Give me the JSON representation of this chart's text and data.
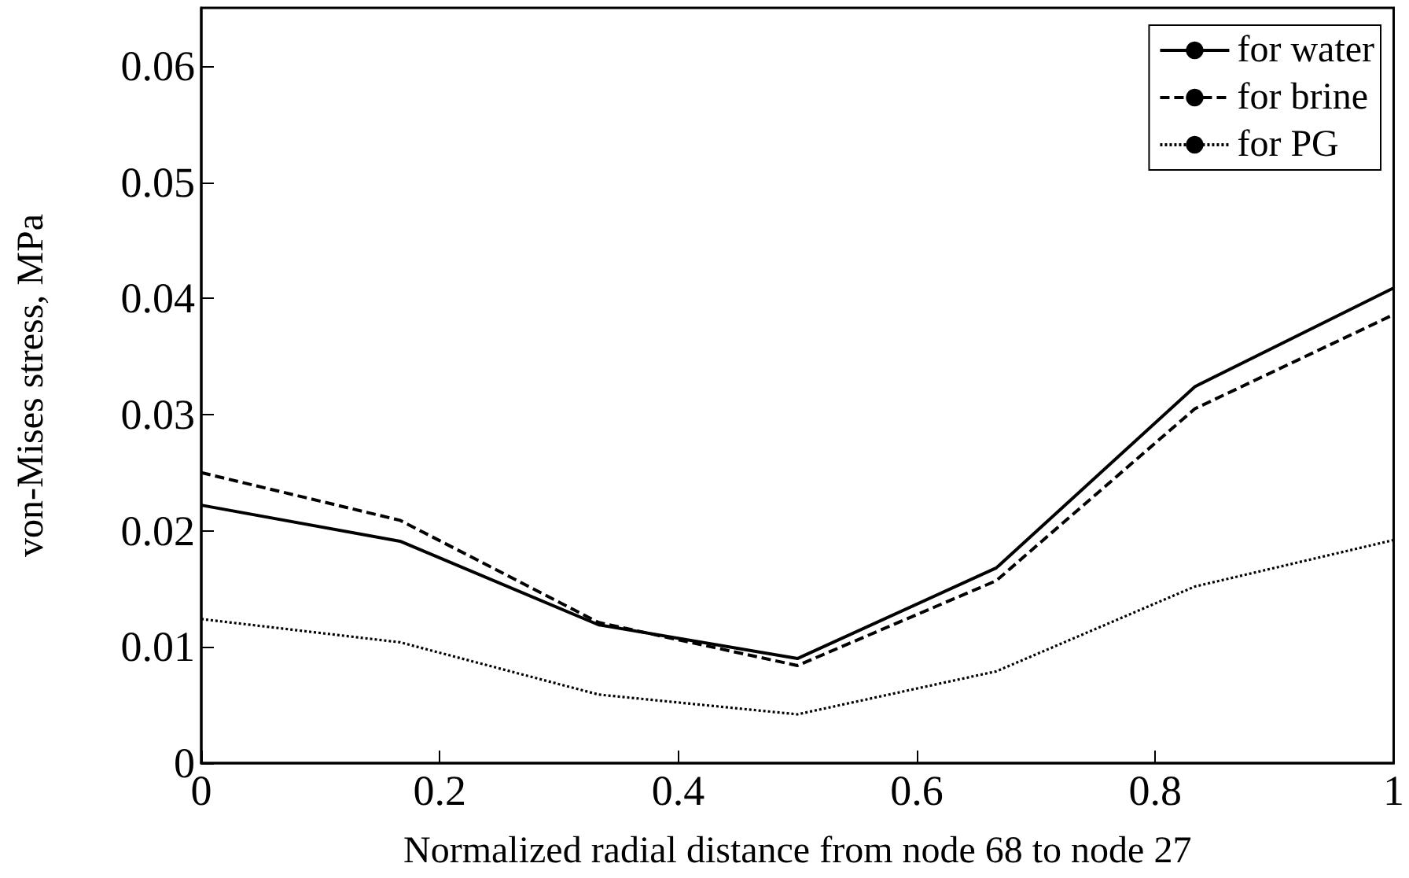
{
  "chart_data": {
    "type": "line",
    "xlabel": "Normalized radial distance from node 68 to node 27",
    "ylabel": "von-Mises stress, MPa",
    "x": [
      0,
      0.1667,
      0.3333,
      0.5,
      0.6667,
      0.8333,
      1
    ],
    "series": [
      {
        "name": "for water",
        "color": "#000000",
        "line_style": "solid",
        "values": [
          0.0222,
          0.0191,
          0.0119,
          0.009,
          0.0168,
          0.0324,
          0.0409
        ]
      },
      {
        "name": "for brine",
        "color": "#000000",
        "line_style": "dashed",
        "values": [
          0.025,
          0.0209,
          0.0121,
          0.0084,
          0.0157,
          0.0305,
          0.0386
        ]
      },
      {
        "name": "for PG",
        "color": "#000000",
        "line_style": "dotted",
        "values": [
          0.0124,
          0.0104,
          0.0059,
          0.0042,
          0.0079,
          0.0152,
          0.0192
        ]
      }
    ],
    "xlim": [
      0,
      1
    ],
    "xticks": [
      0,
      0.2,
      0.4,
      0.6,
      0.8,
      1
    ],
    "ylim": [
      0,
      0.065
    ],
    "yticks": [
      0,
      0.01,
      0.02,
      0.03,
      0.04,
      0.05,
      0.06
    ],
    "grid": false,
    "legend": "top right",
    "marker": "none"
  }
}
